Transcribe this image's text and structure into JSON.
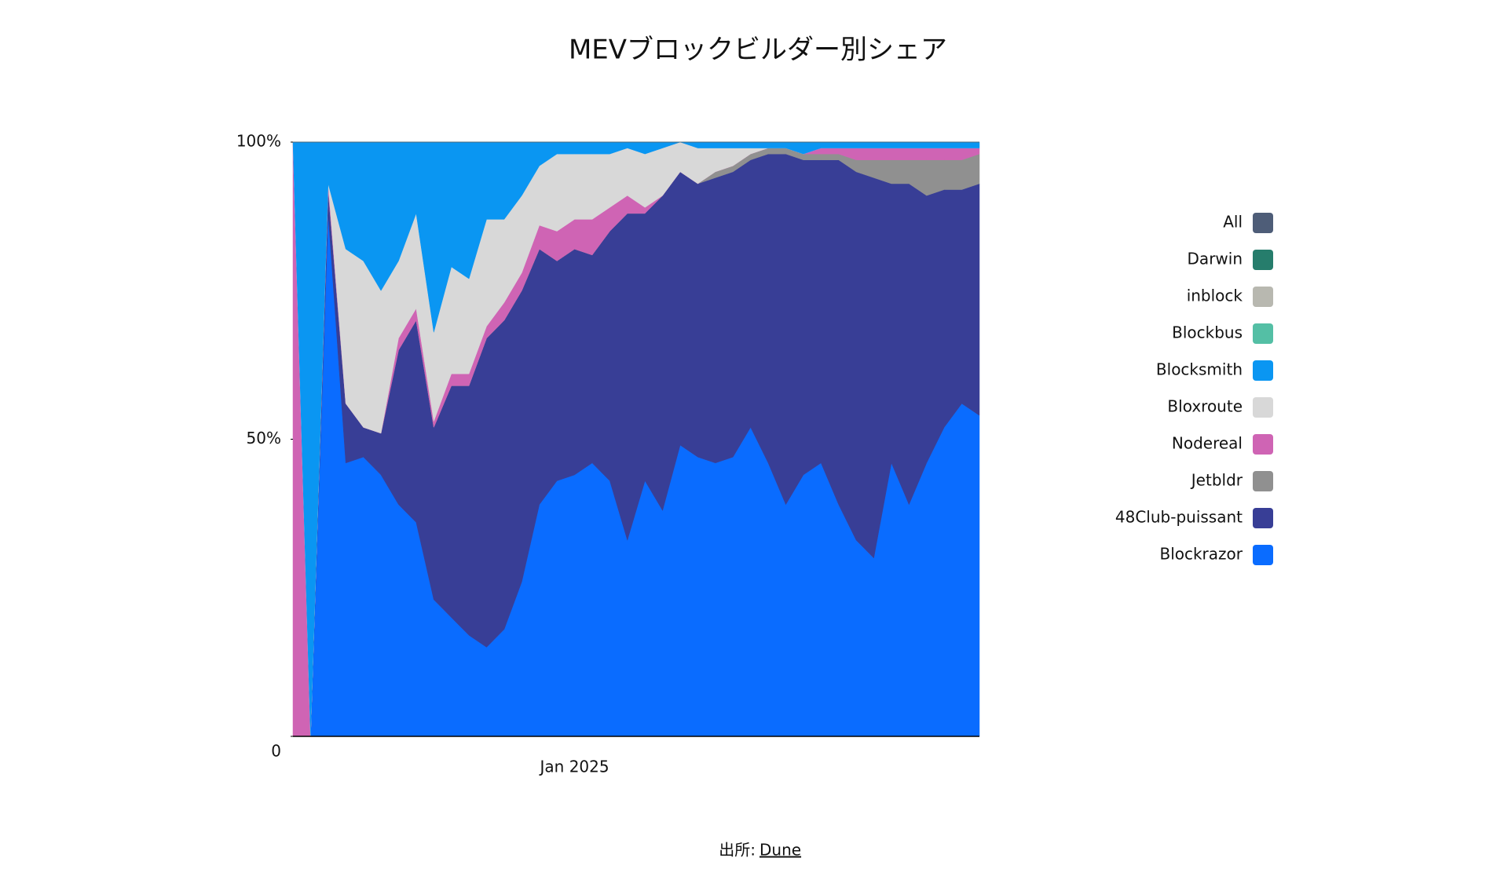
{
  "chart_data": {
    "type": "stacked_area_percent",
    "title": "MEVブロックビルダー別シェア",
    "categories": [
      null,
      null,
      null,
      null,
      null,
      null,
      null,
      null,
      null,
      null,
      null,
      null,
      null,
      null,
      null,
      null,
      "Jan 2025",
      null,
      null,
      null,
      null,
      null,
      null,
      null,
      null,
      null,
      null,
      null,
      null,
      null,
      null,
      null,
      null,
      null,
      null,
      null,
      null,
      null,
      null,
      null
    ],
    "ylim": [
      0,
      100
    ],
    "yticks": [
      0,
      {
        "value": 50,
        "label": "50%"
      },
      {
        "value": 100,
        "label": "100%"
      }
    ],
    "series": [
      {
        "name": "Blockrazor",
        "color": "#0a6cff",
        "values": [
          0,
          0,
          88,
          46,
          47,
          44,
          39,
          36,
          23,
          20,
          17,
          15,
          18,
          26,
          39,
          43,
          44,
          46,
          43,
          33,
          43,
          38,
          49,
          47,
          46,
          47,
          52,
          46,
          39,
          44,
          46,
          39,
          33,
          30,
          46,
          39,
          46,
          52,
          56,
          54
        ]
      },
      {
        "name": "48Club-puissant",
        "color": "#383e96",
        "values": [
          0,
          0,
          4,
          10,
          5,
          7,
          26,
          34,
          29,
          39,
          42,
          52,
          52,
          49,
          43,
          37,
          38,
          35,
          42,
          55,
          45,
          53,
          46,
          46,
          48,
          48,
          45,
          52,
          59,
          53,
          51,
          58,
          62,
          64,
          47,
          54,
          45,
          40,
          36,
          39
        ]
      },
      {
        "name": "Jetbldr",
        "color": "#909090",
        "values": [
          0,
          0,
          0,
          0,
          0,
          0,
          0,
          0,
          0,
          0,
          0,
          0,
          0,
          0,
          0,
          0,
          0,
          0,
          0,
          0,
          0,
          0,
          0,
          0,
          1,
          1,
          1,
          1,
          1,
          1,
          1,
          1,
          2,
          3,
          4,
          4,
          6,
          5,
          5,
          5
        ]
      },
      {
        "name": "Nodereal",
        "color": "#cf64b4",
        "values": [
          100,
          0,
          1,
          0,
          0,
          0,
          2,
          2,
          1,
          2,
          2,
          2,
          3,
          3,
          4,
          5,
          5,
          6,
          4,
          3,
          1,
          0,
          0,
          0,
          0,
          0,
          0,
          0,
          0,
          0,
          1,
          1,
          2,
          2,
          2,
          2,
          2,
          2,
          2,
          1
        ]
      },
      {
        "name": "Bloxroute",
        "color": "#d8d8d8",
        "values": [
          0,
          0,
          0,
          26,
          28,
          24,
          13,
          16,
          15,
          18,
          16,
          18,
          14,
          13,
          10,
          13,
          11,
          11,
          9,
          8,
          9,
          8,
          5,
          6,
          4,
          3,
          1,
          0,
          0,
          0,
          0,
          0,
          0,
          0,
          0,
          0,
          0,
          0,
          0,
          0
        ]
      },
      {
        "name": "Blocksmith",
        "color": "#0a96f2",
        "values": [
          0,
          100,
          7,
          18,
          20,
          25,
          20,
          12,
          32,
          21,
          23,
          13,
          13,
          9,
          4,
          2,
          2,
          2,
          2,
          1,
          2,
          1,
          0,
          1,
          1,
          1,
          1,
          1,
          1,
          2,
          1,
          1,
          1,
          1,
          1,
          1,
          1,
          1,
          1,
          1
        ]
      },
      {
        "name": "Blockbus",
        "color": "#54bfa5",
        "values": [
          0,
          0,
          0,
          0,
          0,
          0,
          0,
          0,
          0,
          0,
          0,
          0,
          0,
          0,
          0,
          0,
          0,
          0,
          0,
          0,
          0,
          0,
          0,
          0,
          0,
          0,
          0,
          0,
          0,
          0,
          0,
          0,
          0,
          0,
          0,
          0,
          0,
          0,
          0,
          0
        ]
      },
      {
        "name": "inblock",
        "color": "#b8b8b0",
        "values": [
          0,
          0,
          0,
          0,
          0,
          0,
          0,
          0,
          0,
          0,
          0,
          0,
          0,
          0,
          0,
          0,
          0,
          0,
          0,
          0,
          0,
          0,
          0,
          0,
          0,
          0,
          0,
          0,
          0,
          0,
          0,
          0,
          0,
          0,
          0,
          0,
          0,
          0,
          0,
          0
        ]
      },
      {
        "name": "Darwin",
        "color": "#267d6c",
        "values": [
          0,
          0,
          0,
          0,
          0,
          0,
          0,
          0,
          0,
          0,
          0,
          0,
          0,
          0,
          0,
          0,
          0,
          0,
          0,
          0,
          0,
          0,
          0,
          0,
          0,
          0,
          0,
          0,
          0,
          0,
          0,
          0,
          0,
          0,
          0,
          0,
          0,
          0,
          0,
          0
        ]
      },
      {
        "name": "All",
        "color": "#4e5d78",
        "values": [
          0,
          0,
          0,
          0,
          0,
          0,
          0,
          0,
          0,
          0,
          0,
          0,
          0,
          0,
          0,
          0,
          0,
          0,
          0,
          0,
          0,
          0,
          0,
          0,
          0,
          0,
          0,
          0,
          0,
          0,
          0,
          0,
          0,
          0,
          0,
          0,
          0,
          0,
          0,
          0
        ]
      }
    ],
    "legend": "right",
    "source_prefix": "出所:",
    "source": "Dune"
  }
}
